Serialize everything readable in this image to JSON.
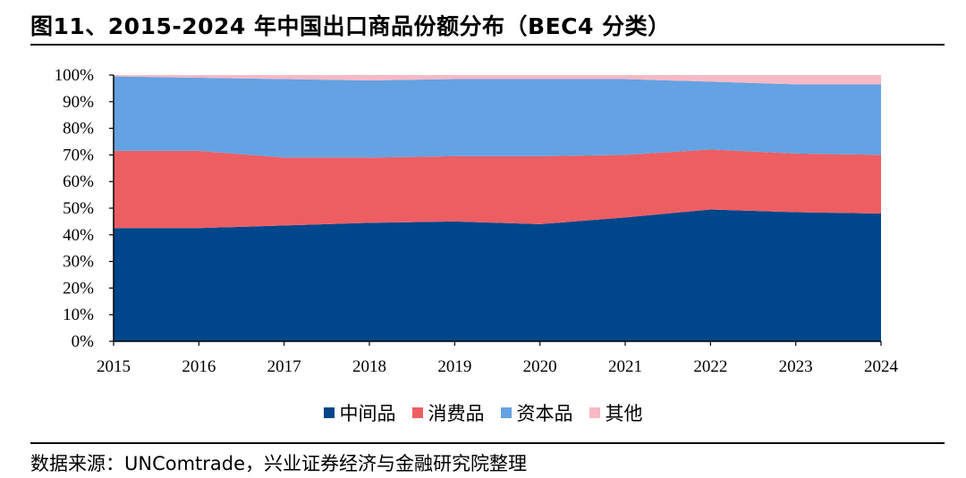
{
  "figure": {
    "title": "图11、2015-2024 年中国出口商品份额分布（BEC4 分类）",
    "source": "数据来源：UNComtrade，兴业证券经济与金融研究院整理"
  },
  "chart_data": {
    "type": "area",
    "stacked": true,
    "x": [
      "2015",
      "2016",
      "2017",
      "2018",
      "2019",
      "2020",
      "2021",
      "2022",
      "2023",
      "2024"
    ],
    "series": [
      {
        "name": "中间品",
        "color": "#00468b",
        "values": [
          42.5,
          42.5,
          43.5,
          44.5,
          45,
          44,
          46.5,
          49.5,
          48.5,
          48
        ]
      },
      {
        "name": "消费品",
        "color": "#ed5e63",
        "values": [
          29,
          29,
          25.5,
          24.5,
          24.5,
          25.5,
          23.5,
          22.5,
          22,
          22
        ]
      },
      {
        "name": "资本品",
        "color": "#64a2e3",
        "values": [
          28,
          27.5,
          29.5,
          29,
          29,
          29,
          28.5,
          25.5,
          26,
          26.5
        ]
      },
      {
        "name": "其他",
        "color": "#f7b9c6",
        "values": [
          0.5,
          1,
          1.5,
          2,
          1.5,
          1.5,
          1.5,
          2.5,
          3.5,
          3.5
        ]
      }
    ],
    "y_ticks": [
      "0%",
      "10%",
      "20%",
      "30%",
      "40%",
      "50%",
      "60%",
      "70%",
      "80%",
      "90%",
      "100%"
    ],
    "ylim": [
      0,
      100
    ],
    "legend_position": "bottom-center",
    "grid": false
  }
}
